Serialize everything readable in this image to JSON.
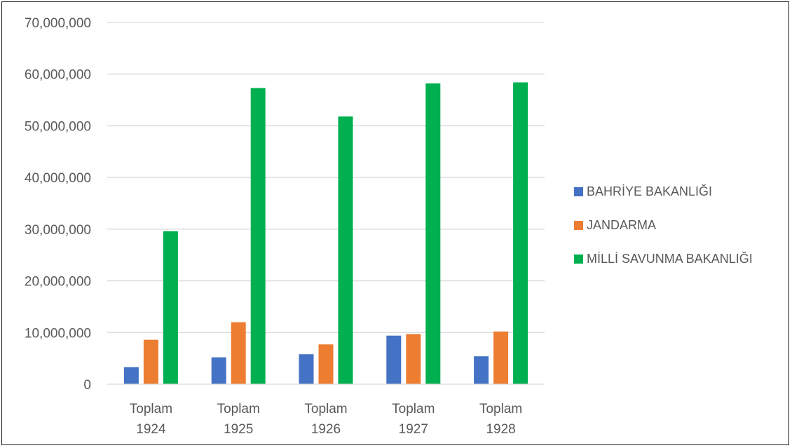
{
  "chart_data": {
    "type": "bar",
    "categories": [
      [
        "Toplam",
        "1924"
      ],
      [
        "Toplam",
        "1925"
      ],
      [
        "Toplam",
        "1926"
      ],
      [
        "Toplam",
        "1927"
      ],
      [
        "Toplam",
        "1928"
      ]
    ],
    "series": [
      {
        "name": "BAHRİYE BAKANLIĞI",
        "color": "#4472C4",
        "values": [
          3300000,
          5200000,
          5800000,
          9400000,
          5400000
        ]
      },
      {
        "name": "JANDARMA",
        "color": "#ED7D31",
        "values": [
          8600000,
          12000000,
          7700000,
          9700000,
          10200000
        ]
      },
      {
        "name": "MİLLİ SAVUNMA BAKANLIĞI",
        "color": "#00B050",
        "values": [
          29600000,
          57300000,
          51800000,
          58200000,
          58400000
        ]
      }
    ],
    "yticks": [
      "0",
      "10,000,000",
      "20,000,000",
      "30,000,000",
      "40,000,000",
      "50,000,000",
      "60,000,000",
      "70,000,000"
    ],
    "ylim": [
      0,
      70000000
    ],
    "title": "",
    "xlabel": "",
    "ylabel": "",
    "grid": true,
    "legend_position": "right"
  }
}
